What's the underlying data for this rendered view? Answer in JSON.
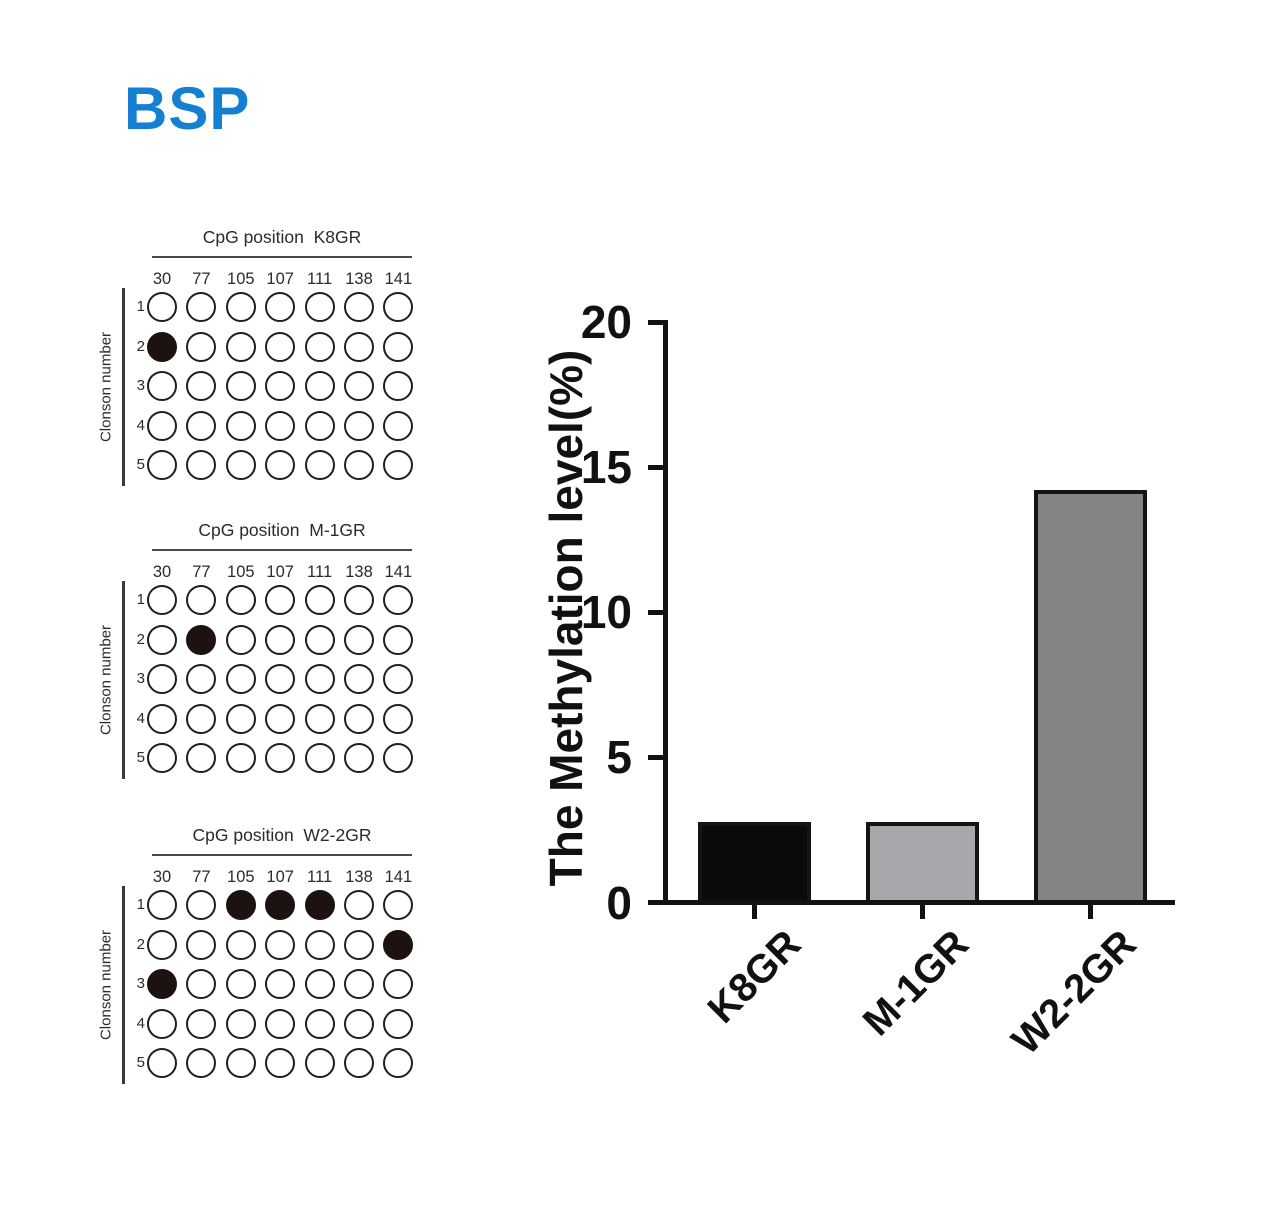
{
  "figure": {
    "title": "BSP",
    "title_color": "#1580d2"
  },
  "cpg_panels": {
    "row_axis_label": "Clonson number",
    "column_labels": [
      "30",
      "77",
      "105",
      "107",
      "111",
      "138",
      "141"
    ],
    "row_labels": [
      "1",
      "2",
      "3",
      "4",
      "5"
    ],
    "dot_fill_color": "#1c1210",
    "panels": [
      {
        "sample": "K8GR",
        "title": "CpG position  K8GR",
        "methylated_cells": [
          [
            1,
            0
          ]
        ]
      },
      {
        "sample": "M-1GR",
        "title": "CpG position  M-1GR",
        "methylated_cells": [
          [
            1,
            1
          ]
        ]
      },
      {
        "sample": "W2-2GR",
        "title": "CpG position  W2-2GR",
        "methylated_cells": [
          [
            0,
            2
          ],
          [
            0,
            3
          ],
          [
            0,
            4
          ],
          [
            1,
            6
          ],
          [
            2,
            0
          ]
        ]
      }
    ]
  },
  "chart_data": {
    "type": "bar",
    "title": "",
    "categories": [
      "K8GR",
      "M-1GR",
      "W2-2GR"
    ],
    "values": [
      2.86,
      2.86,
      14.29
    ],
    "xlabel": "",
    "ylabel": "The Methylation level(%)",
    "ylim": [
      0,
      20
    ],
    "yticks": [
      0,
      5,
      10,
      15,
      20
    ],
    "grid": false,
    "legend": "none",
    "bar_colors": [
      "#0a0a0a",
      "#a9a7ac",
      "#858386"
    ],
    "bar_border_color": "#141414",
    "axis_color": "#111111"
  }
}
